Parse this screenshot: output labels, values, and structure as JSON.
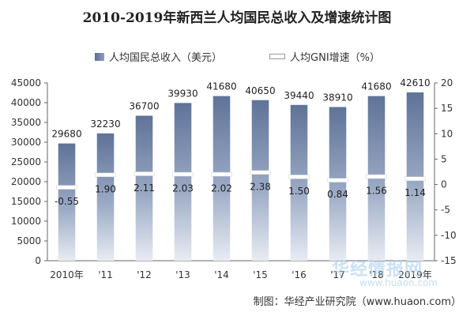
{
  "chart_data": {
    "type": "bar",
    "title": "2010-2019年新西兰人均国民总收入及增速统计图",
    "categories": [
      "2010年",
      "'11",
      "'12",
      "'13",
      "'14",
      "'15",
      "'16",
      "'17",
      "'18",
      "2019年"
    ],
    "series": [
      {
        "name": "人均国民总收入（美元）",
        "type": "bar",
        "axis": "left",
        "values": [
          29680,
          32230,
          36700,
          39930,
          41680,
          40650,
          39440,
          38910,
          41680,
          42610
        ]
      },
      {
        "name": "人均GNI增速（%）",
        "type": "marker",
        "axis": "right",
        "values": [
          -0.55,
          1.9,
          2.11,
          2.03,
          2.02,
          2.38,
          1.5,
          0.84,
          1.56,
          1.14
        ]
      }
    ],
    "left_axis": {
      "ylim": [
        0,
        45000
      ],
      "ticks": [
        0,
        5000,
        10000,
        15000,
        20000,
        25000,
        30000,
        35000,
        40000,
        45000
      ]
    },
    "right_axis": {
      "ylim": [
        -15,
        20
      ],
      "ticks": [
        -15,
        -10,
        -5,
        0,
        5,
        10,
        15,
        20
      ]
    },
    "colors": {
      "bar": "#5f7398",
      "bar_light": "#e8ecf3",
      "marker": "#ffffff"
    },
    "grid": false,
    "legend_position": "top"
  },
  "source": "制图：华经产业研究院（www.huaon.com）",
  "watermark": "华经情报网",
  "watermark_sub": "www.huaon.com"
}
